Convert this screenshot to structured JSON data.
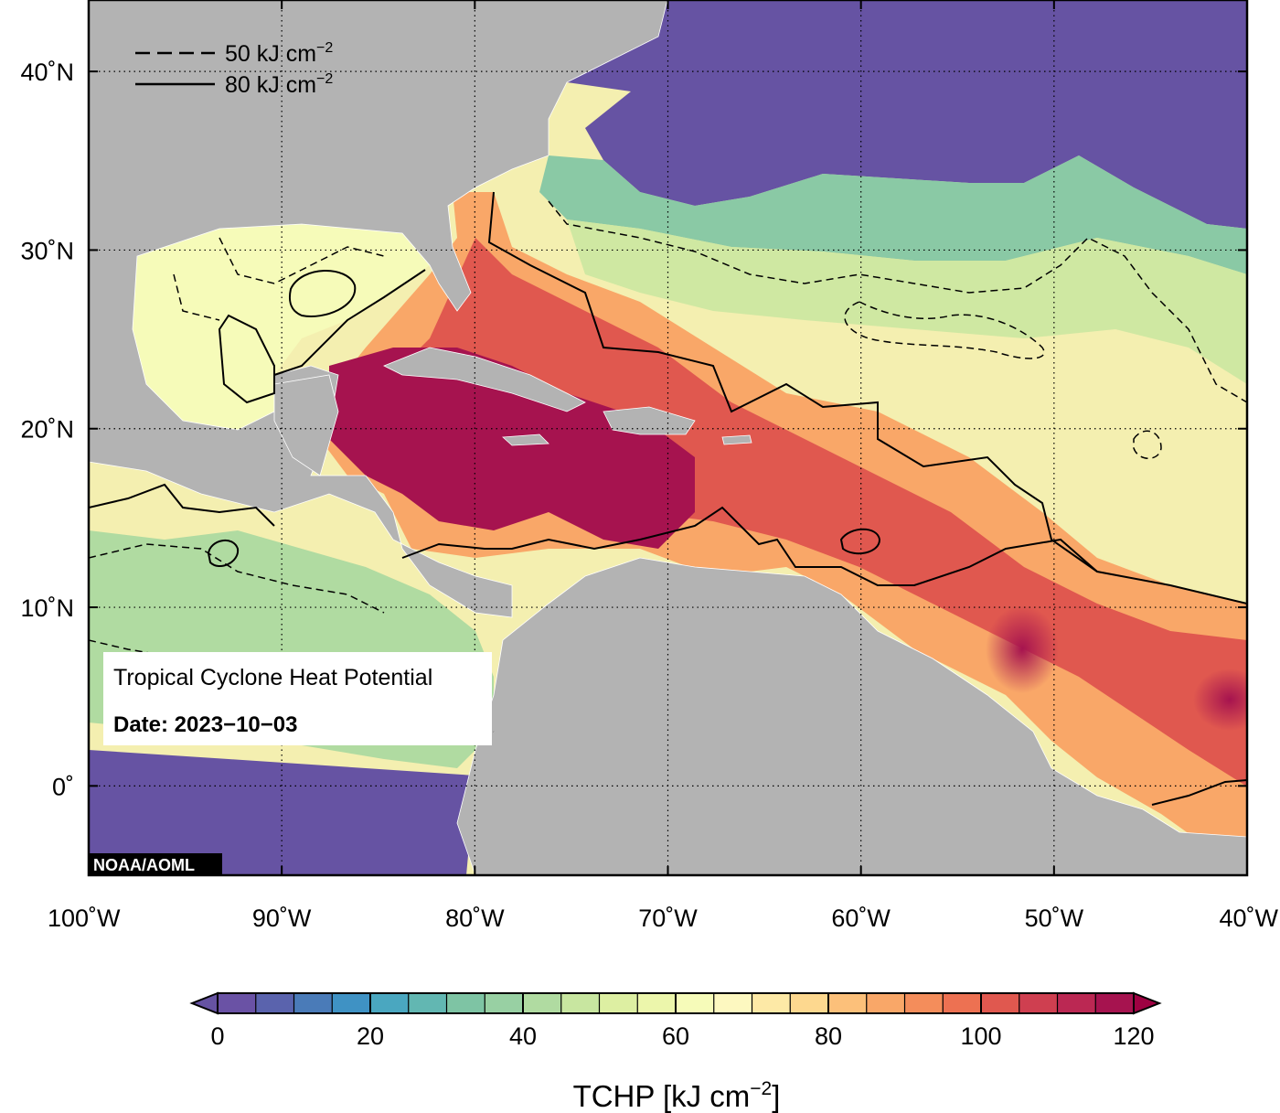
{
  "map": {
    "title": "Tropical Cyclone Heat Potential",
    "date_label": "Date: 2023−10−03",
    "credit": "NOAA/AOML",
    "extent": {
      "lon": [
        -100,
        -40
      ],
      "lat": [
        -5,
        44
      ]
    },
    "lat_ticks": [
      {
        "value": 40,
        "label": "40˚N"
      },
      {
        "value": 30,
        "label": "30˚N"
      },
      {
        "value": 20,
        "label": "20˚N"
      },
      {
        "value": 10,
        "label": "10˚N"
      },
      {
        "value": 0,
        "label": "0˚"
      }
    ],
    "lon_ticks": [
      {
        "value": -100,
        "label": "100˚W"
      },
      {
        "value": -90,
        "label": "90˚W"
      },
      {
        "value": -80,
        "label": "80˚W"
      },
      {
        "value": -70,
        "label": "70˚W"
      },
      {
        "value": -60,
        "label": "60˚W"
      },
      {
        "value": -50,
        "label": "50˚W"
      },
      {
        "value": -40,
        "label": "40˚W"
      }
    ],
    "grid": "dotted",
    "land_color": "#b3b3b3",
    "contour_legend": [
      {
        "style": "dashed",
        "value": "50",
        "unit": "kJ cm",
        "exponent": "−2"
      },
      {
        "style": "solid",
        "value": "80",
        "unit": "kJ cm",
        "exponent": "−2"
      }
    ]
  },
  "colorbar": {
    "label": "TCHP [kJ cm",
    "label_exponent": "−2",
    "label_close": "]",
    "min": 0,
    "max": 120,
    "step": 5,
    "ticks": [
      {
        "value": 0,
        "label": "0"
      },
      {
        "value": 20,
        "label": "20"
      },
      {
        "value": 40,
        "label": "40"
      },
      {
        "value": 60,
        "label": "60"
      },
      {
        "value": 80,
        "label": "80"
      },
      {
        "value": 100,
        "label": "100"
      },
      {
        "value": 120,
        "label": "120"
      }
    ],
    "colors": [
      "#6a52a5",
      "#5a63ad",
      "#4a7bb8",
      "#3f92c4",
      "#4aa7c0",
      "#62b7b2",
      "#7ec4a4",
      "#98d0a3",
      "#b0dba1",
      "#c8e6a0",
      "#ddefa2",
      "#ecf6ab",
      "#f6fbb9",
      "#fdf8c0",
      "#fde9a6",
      "#fdd88f",
      "#fcc07a",
      "#f9a768",
      "#f48d5b",
      "#ed7152",
      "#e0584f",
      "#cf3f50",
      "#bb2853",
      "#a6134f"
    ],
    "under_color": "#6653a3",
    "over_color": "#9e0142"
  }
}
